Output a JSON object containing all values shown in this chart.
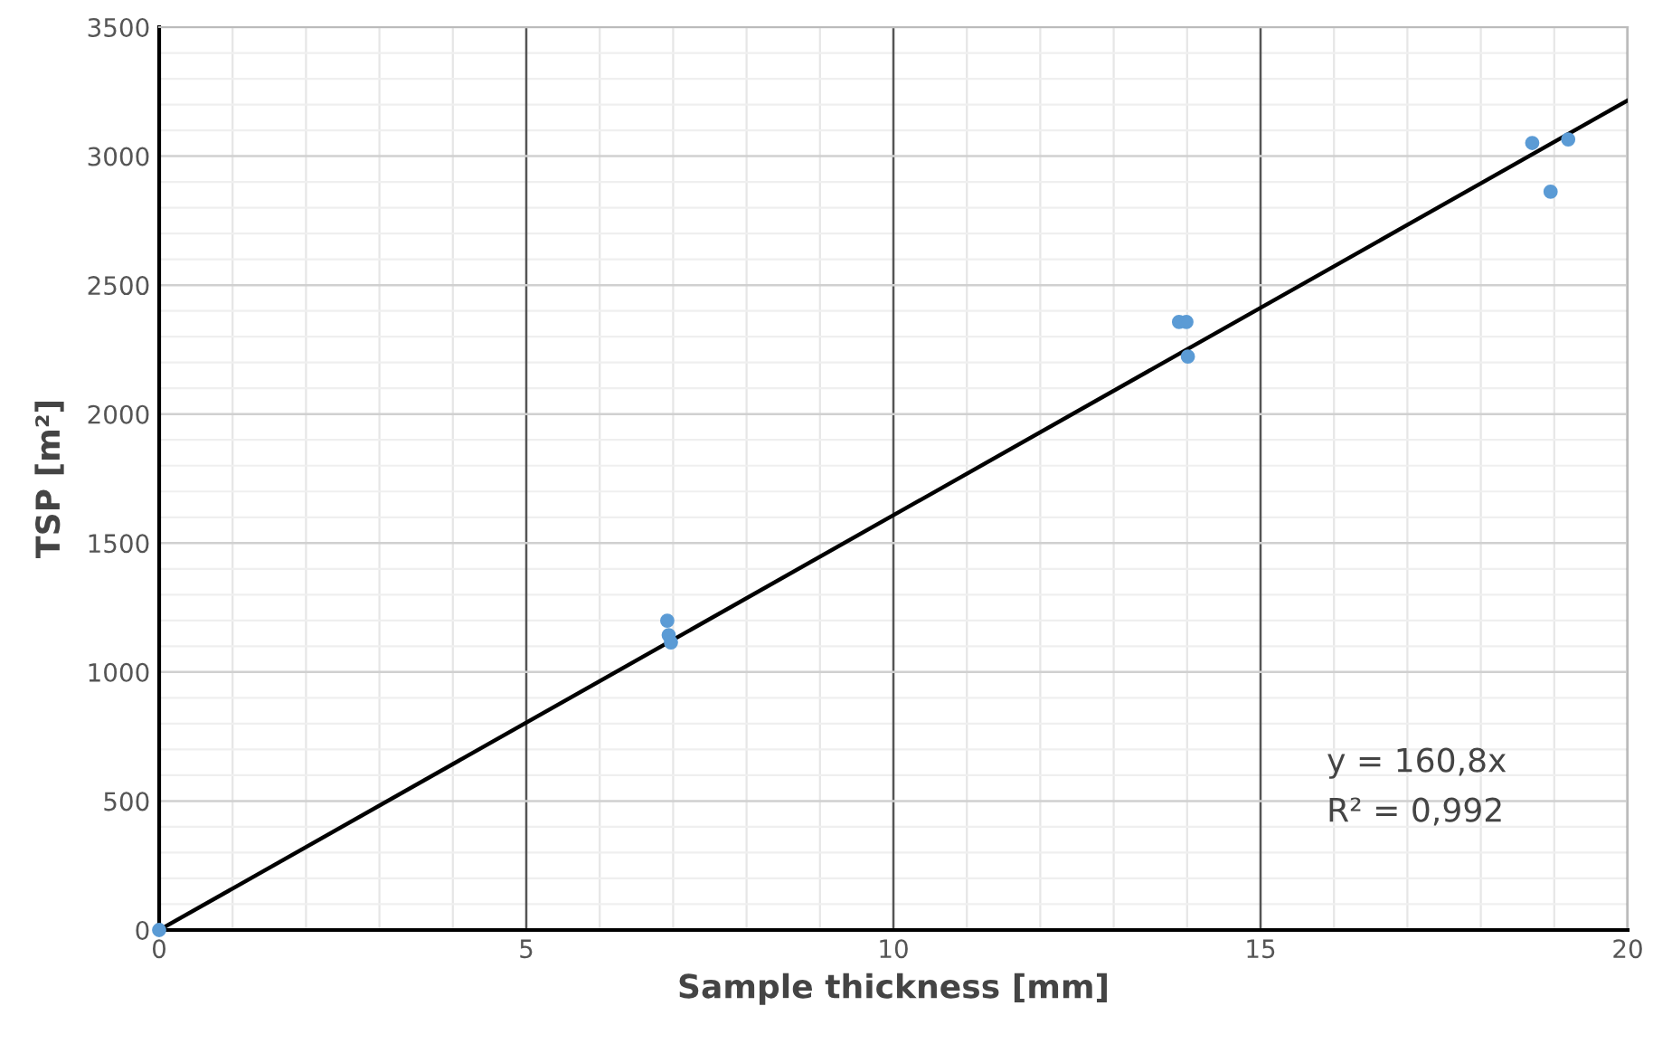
{
  "chart_data": {
    "type": "scatter",
    "xlabel": "Sample thickness [mm]",
    "ylabel": "TSP [m²]",
    "xlim": [
      0,
      20
    ],
    "ylim": [
      0,
      3500
    ],
    "xticks": [
      0,
      5,
      10,
      15,
      20
    ],
    "yticks": [
      0,
      500,
      1000,
      1500,
      2000,
      2500,
      3000,
      3500
    ],
    "grid": true,
    "series": [
      {
        "marker": "circle",
        "color": "#5b9bd5",
        "x": [
          0,
          6.92,
          6.94,
          6.97,
          13.89,
          13.99,
          14.01,
          18.7,
          18.95,
          19.19
        ],
        "values": [
          0,
          1199,
          1143,
          1115,
          2357,
          2357,
          2223,
          3051,
          2862,
          3065
        ]
      },
      {
        "type": "line",
        "color": "#000000",
        "x": [
          0,
          20
        ],
        "values": [
          0,
          3216
        ]
      }
    ],
    "annotations": [
      "y = 160,8x",
      "R² = 0,992"
    ]
  }
}
